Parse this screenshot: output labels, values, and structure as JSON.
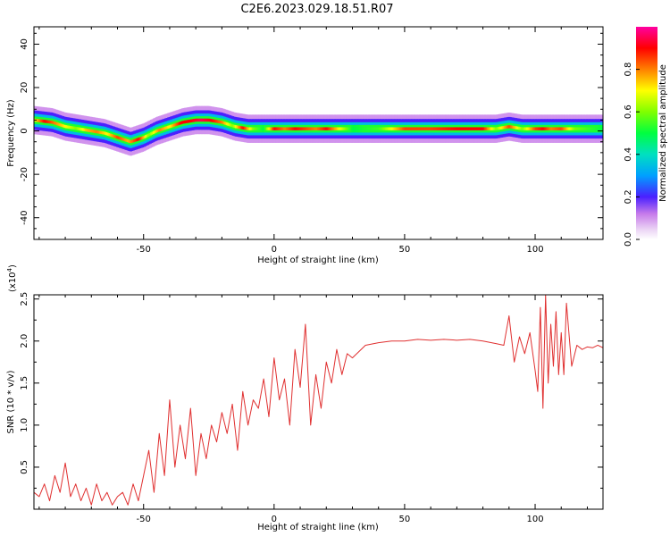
{
  "title": "C2E6.2023.029.18.51.R07",
  "chart_data": [
    {
      "type": "heatmap",
      "xlabel": "Height of straight line (km)",
      "ylabel": "Frequency (Hz)",
      "xlim": [
        -92,
        126
      ],
      "ylim": [
        -50,
        48
      ],
      "xticks": [
        -50,
        0,
        50,
        100
      ],
      "yticks": [
        -40,
        -20,
        0,
        20,
        40
      ],
      "colorbar": {
        "label": "Normalized spectral amplitude",
        "range": [
          0.0,
          1.0
        ],
        "ticks": [
          0.0,
          0.2,
          0.4,
          0.6,
          0.8
        ],
        "tick_labels": [
          "0.0",
          "0.2",
          "0.4",
          "0.6",
          "0.8"
        ]
      },
      "ridge_x": [
        -92,
        -85,
        -80,
        -75,
        -70,
        -65,
        -60,
        -55,
        -50,
        -45,
        -40,
        -35,
        -30,
        -25,
        -20,
        -15,
        -10,
        -5,
        0,
        10,
        20,
        30,
        50,
        70,
        85,
        90,
        95,
        100,
        105,
        110,
        115,
        126
      ],
      "ridge_y": [
        5,
        4,
        2,
        1,
        0,
        -1,
        -3,
        -5,
        -3,
        0,
        2,
        4,
        5,
        5,
        4,
        2,
        1,
        1,
        1,
        1,
        1,
        1,
        1,
        1,
        1,
        2,
        1,
        1,
        1,
        1,
        1,
        1
      ],
      "peak_amplitude_x": [
        -92,
        -88,
        -84,
        -80,
        -76,
        -72,
        -68,
        -64,
        -60,
        -56,
        -52,
        -48,
        -44,
        -40,
        -36,
        -32,
        -28,
        -24,
        -20,
        -16,
        -12,
        -8,
        -4,
        0,
        4,
        8,
        12,
        16,
        20,
        30,
        40,
        50,
        60,
        70,
        80,
        85,
        90,
        95,
        100,
        103,
        106,
        110,
        115,
        120,
        126
      ],
      "peak_amplitude": [
        0.7,
        0.9,
        0.8,
        0.7,
        0.6,
        0.75,
        0.8,
        0.7,
        0.85,
        0.75,
        0.9,
        0.6,
        0.8,
        0.7,
        0.9,
        0.9,
        0.95,
        0.9,
        0.8,
        0.6,
        0.9,
        0.6,
        0.5,
        0.9,
        0.8,
        0.9,
        0.85,
        0.8,
        0.9,
        0.5,
        0.55,
        0.85,
        0.85,
        0.9,
        0.9,
        0.6,
        0.85,
        0.6,
        0.85,
        0.9,
        0.8,
        0.85,
        0.6,
        0.55,
        0.5
      ]
    },
    {
      "type": "line",
      "xlabel": "Height of straight line (km)",
      "ylabel": "SNR (10 * v/v)",
      "scale_label": "(x10",
      "scale_exponent": "4",
      "scale_close": ")",
      "xlim": [
        -92,
        126
      ],
      "ylim": [
        0.0,
        2.55
      ],
      "xticks": [
        -50,
        0,
        50,
        100
      ],
      "yticks": [
        0.5,
        1.0,
        1.5,
        2.0,
        2.5
      ],
      "ytick_labels": [
        "0.5",
        "1.0",
        "1.5",
        "2.0",
        "2.5"
      ],
      "series": [
        {
          "color": "#e03030",
          "x": [
            -92,
            -90,
            -88,
            -86,
            -84,
            -82,
            -80,
            -78,
            -76,
            -74,
            -72,
            -70,
            -68,
            -66,
            -64,
            -62,
            -60,
            -58,
            -56,
            -54,
            -52,
            -50,
            -48,
            -46,
            -44,
            -42,
            -40,
            -38,
            -36,
            -34,
            -32,
            -30,
            -28,
            -26,
            -24,
            -22,
            -20,
            -18,
            -16,
            -14,
            -12,
            -10,
            -8,
            -6,
            -4,
            -2,
            0,
            2,
            4,
            6,
            8,
            10,
            12,
            14,
            16,
            18,
            20,
            22,
            24,
            26,
            28,
            30,
            35,
            40,
            45,
            50,
            55,
            60,
            65,
            70,
            75,
            80,
            85,
            88,
            90,
            92,
            94,
            96,
            98,
            100,
            101,
            102,
            103,
            104,
            105,
            106,
            107,
            108,
            109,
            110,
            111,
            112,
            114,
            116,
            118,
            120,
            122,
            124,
            126
          ],
          "y": [
            0.2,
            0.15,
            0.3,
            0.1,
            0.4,
            0.2,
            0.55,
            0.15,
            0.3,
            0.1,
            0.25,
            0.05,
            0.3,
            0.1,
            0.2,
            0.05,
            0.15,
            0.2,
            0.05,
            0.3,
            0.1,
            0.4,
            0.7,
            0.2,
            0.9,
            0.4,
            1.3,
            0.5,
            1.0,
            0.6,
            1.2,
            0.4,
            0.9,
            0.6,
            1.0,
            0.8,
            1.15,
            0.9,
            1.25,
            0.7,
            1.4,
            1.0,
            1.3,
            1.2,
            1.55,
            1.1,
            1.8,
            1.3,
            1.55,
            1.0,
            1.9,
            1.45,
            2.2,
            1.0,
            1.6,
            1.2,
            1.75,
            1.5,
            1.9,
            1.6,
            1.85,
            1.8,
            1.95,
            1.98,
            2.0,
            2.0,
            2.02,
            2.01,
            2.02,
            2.01,
            2.02,
            2.0,
            1.97,
            1.95,
            2.3,
            1.75,
            2.05,
            1.85,
            2.1,
            1.65,
            1.4,
            2.4,
            1.2,
            2.55,
            1.5,
            2.2,
            1.7,
            2.35,
            1.6,
            2.1,
            1.6,
            2.45,
            1.7,
            1.95,
            1.9,
            1.93,
            1.92,
            1.95,
            1.92
          ]
        }
      ]
    }
  ]
}
